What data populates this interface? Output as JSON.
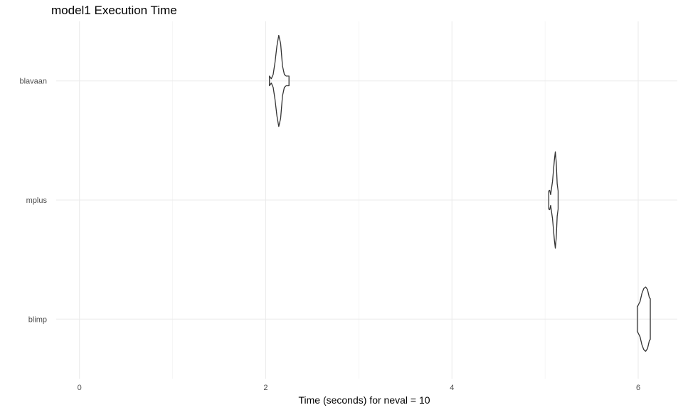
{
  "chart_data": {
    "type": "violin",
    "title": "model1 Execution Time",
    "xlabel": "Time (seconds) for neval = 10",
    "ylabel": "",
    "xlim": [
      -0.25,
      6.42
    ],
    "x_ticks": [
      0,
      2,
      4,
      6
    ],
    "x_tick_labels": [
      "0",
      "2",
      "4",
      "6"
    ],
    "grid": true,
    "orientation": "horizontal",
    "categories": [
      "blavaan",
      "mplus",
      "blimp"
    ],
    "series": [
      {
        "category": "blavaan",
        "min": 2.04,
        "max": 2.25,
        "profile": [
          [
            2.04,
            0.09
          ],
          [
            2.06,
            0.04
          ],
          [
            2.08,
            0.12
          ],
          [
            2.1,
            0.35
          ],
          [
            2.12,
            0.65
          ],
          [
            2.14,
            0.85
          ],
          [
            2.16,
            0.7
          ],
          [
            2.18,
            0.28
          ],
          [
            2.2,
            0.12
          ],
          [
            2.22,
            0.09
          ],
          [
            2.25,
            0.09
          ]
        ]
      },
      {
        "category": "mplus",
        "min": 5.04,
        "max": 5.14,
        "profile": [
          [
            5.04,
            0.17
          ],
          [
            5.05,
            0.18
          ],
          [
            5.06,
            0.1
          ],
          [
            5.08,
            0.35
          ],
          [
            5.1,
            0.75
          ],
          [
            5.11,
            0.9
          ],
          [
            5.12,
            0.7
          ],
          [
            5.13,
            0.3
          ],
          [
            5.14,
            0.17
          ]
        ]
      },
      {
        "category": "blimp",
        "min": 5.99,
        "max": 6.13,
        "profile": [
          [
            5.99,
            0.23
          ],
          [
            6.0,
            0.26
          ],
          [
            6.02,
            0.33
          ],
          [
            6.04,
            0.48
          ],
          [
            6.06,
            0.57
          ],
          [
            6.08,
            0.6
          ],
          [
            6.1,
            0.55
          ],
          [
            6.12,
            0.4
          ],
          [
            6.13,
            0.38
          ]
        ]
      }
    ]
  }
}
